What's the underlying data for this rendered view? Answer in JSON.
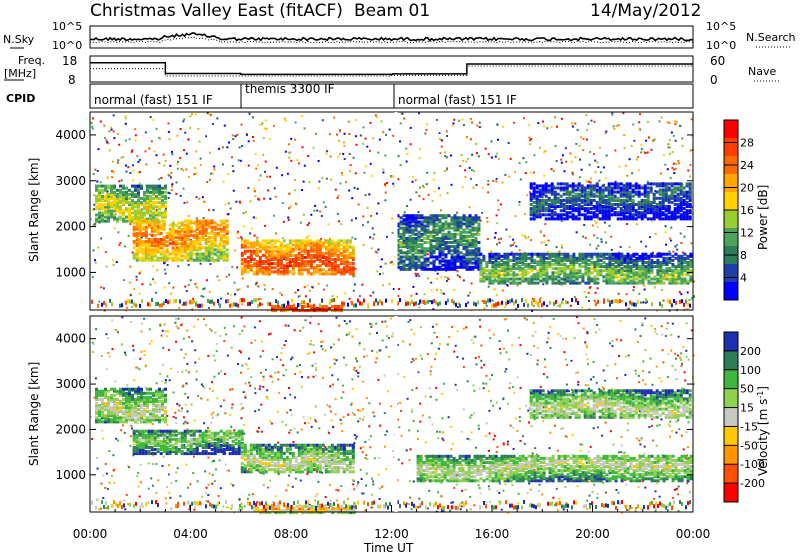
{
  "header": {
    "title": "Christmas Valley East (fitACF)",
    "beam": "Beam 01",
    "date": "14/May/2012"
  },
  "sky_panel": {
    "left_label": "N.Sky",
    "right_label": "N.Search",
    "left_ticks": [
      "10^5",
      "10^0"
    ],
    "right_ticks": [
      "10^5",
      "10^0"
    ]
  },
  "freq_panel": {
    "left_label_1": "Freq.",
    "left_label_2": "[MHz]",
    "right_label": "Nave",
    "left_ticks": [
      "18",
      "8"
    ],
    "right_ticks": [
      "60",
      "0"
    ],
    "freq_steps": [
      [
        0,
        16.5
      ],
      [
        3.0,
        10.5
      ],
      [
        6.0,
        10.0
      ],
      [
        12.05,
        10.3
      ],
      [
        15.0,
        15.8
      ],
      [
        24,
        15.8
      ]
    ],
    "nave_steps": [
      [
        0,
        34
      ],
      [
        3.0,
        12
      ],
      [
        12.0,
        14
      ],
      [
        15.0,
        42
      ],
      [
        24,
        42
      ]
    ]
  },
  "cpid": {
    "label": "CPID",
    "segments": [
      {
        "label": "normal (fast) 151 IF",
        "start": 0,
        "end": 6.0
      },
      {
        "label": "themis 3300 IF",
        "start": 6.0,
        "end": 12.0
      },
      {
        "label": "normal (fast) 151 IF",
        "start": 12.0,
        "end": 24
      }
    ]
  },
  "chart_data": [
    {
      "type": "heatmap",
      "name": "power",
      "ylabel": "Slant Range [km]",
      "yticks": [
        "1000",
        "2000",
        "3000",
        "4000"
      ],
      "ylim": [
        180,
        4500
      ],
      "xlim": [
        0,
        24
      ],
      "colorbar": {
        "label": "Power [dB]",
        "ticks": [
          "4",
          "8",
          "12",
          "16",
          "20",
          "24",
          "28"
        ],
        "colors": [
          "#0000ff",
          "#1c3faa",
          "#2e7d5a",
          "#4aa55a",
          "#9acd32",
          "#ffd200",
          "#ffa500",
          "#ff6a00",
          "#ff3c00",
          "#ff0000"
        ]
      },
      "bands": [
        {
          "t0": 0.2,
          "t1": 3.0,
          "r0": 2150,
          "r1": 2950,
          "level": 5
        },
        {
          "t0": 1.7,
          "t1": 5.5,
          "r0": 1300,
          "r1": 2200,
          "level": 7
        },
        {
          "t0": 6.0,
          "t1": 10.5,
          "r0": 1000,
          "r1": 1750,
          "level": 8
        },
        {
          "t0": 12.2,
          "t1": 15.5,
          "r0": 1100,
          "r1": 2300,
          "level": 3
        },
        {
          "t0": 15.5,
          "t1": 23.9,
          "r0": 800,
          "r1": 1450,
          "level": 4
        },
        {
          "t0": 17.5,
          "t1": 23.9,
          "r0": 2200,
          "r1": 3000,
          "level": 2
        },
        {
          "t0": 7.2,
          "t1": 10.0,
          "r0": 200,
          "r1": 320,
          "level": 9
        }
      ]
    },
    {
      "type": "heatmap",
      "name": "velocity",
      "ylabel": "Slant Range [km]",
      "yticks": [
        "1000",
        "2000",
        "3000",
        "4000"
      ],
      "ylim": [
        180,
        4500
      ],
      "xlim": [
        0,
        24
      ],
      "xticks": [
        "00:00",
        "04:00",
        "08:00",
        "12:00",
        "16:00",
        "20:00",
        "00:00"
      ],
      "xlabel": "Time UT",
      "colorbar": {
        "label": "Velocity [m s^-1]",
        "ticks": [
          "200",
          "100",
          "50",
          "15",
          "-15",
          "-50",
          "-100",
          "-200"
        ],
        "colors": [
          "#1c2fb0",
          "#2e7d5a",
          "#3db83d",
          "#8fd14f",
          "#c8c8c0",
          "#ffc800",
          "#ff9600",
          "#ff5000",
          "#ff0000"
        ]
      },
      "bands": [
        {
          "t0": 0.2,
          "t1": 3.0,
          "r0": 2200,
          "r1": 2950,
          "level": 4
        },
        {
          "t0": 1.7,
          "t1": 6.0,
          "r0": 1500,
          "r1": 2000,
          "level": 3
        },
        {
          "t0": 6.0,
          "t1": 10.5,
          "r0": 1100,
          "r1": 1700,
          "level": 4
        },
        {
          "t0": 13.0,
          "t1": 23.9,
          "r0": 900,
          "r1": 1450,
          "level": 4
        },
        {
          "t0": 17.5,
          "t1": 23.9,
          "r0": 2300,
          "r1": 2900,
          "level": 4
        },
        {
          "t0": 6.5,
          "t1": 10.5,
          "r0": 200,
          "r1": 350,
          "level": 6
        }
      ]
    }
  ]
}
